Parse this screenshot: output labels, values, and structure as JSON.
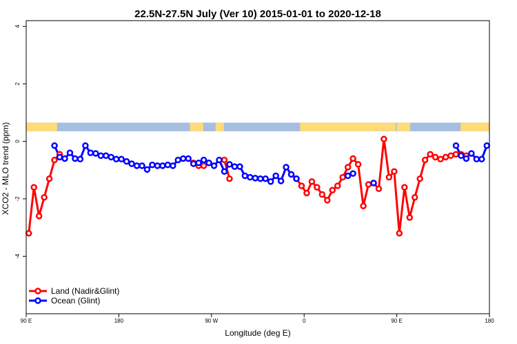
{
  "chart_data": {
    "type": "line",
    "title": "22.5N-27.5N July (Ver 10)   2015-01-01 to 2020-12-18",
    "xlabel": "Longitude (deg E)",
    "ylabel": "XCO2 - MLO trend (ppm)",
    "xlim": [
      90,
      540
    ],
    "ylim": [
      -6,
      4.2
    ],
    "x_ticks": [
      90,
      180,
      270,
      360,
      450,
      540
    ],
    "x_tick_labels": [
      "90 E",
      "180",
      "90 W",
      "0",
      "90 E",
      "180"
    ],
    "y_ticks": [
      -4,
      -2,
      0,
      2,
      4
    ],
    "y_tick_labels": [
      "-4",
      "-2",
      "0",
      "2",
      "4"
    ],
    "grid": false,
    "legend_position": "bottom-left",
    "land_strip": {
      "y_range": [
        0.35,
        0.65
      ],
      "ocean_color": "#a6bedf",
      "land_color": "#ffdb7a",
      "land_intervals": [
        [
          90,
          120
        ],
        [
          249,
          262
        ],
        [
          274,
          278
        ],
        [
          277,
          282
        ],
        [
          356,
          425
        ],
        [
          422,
          442
        ],
        [
          442,
          449
        ],
        [
          450,
          463
        ],
        [
          512,
          540
        ]
      ]
    },
    "series": [
      {
        "name": "Land (Nadir&Glint)",
        "color": "#ff0000",
        "x": [
          92.5,
          97.5,
          102.5,
          107.5,
          112.5,
          117.5,
          122.5,
          252.5,
          257.5,
          262.5,
          267.5,
          282.5,
          287.5,
          347.5,
          352.5,
          357.5,
          362.5,
          367.5,
          372.5,
          377.5,
          382.5,
          387.5,
          392.5,
          397.5,
          402.5,
          407.5,
          412.5,
          417.5,
          422.5,
          427.5,
          432.5,
          437.5,
          442.5,
          447.5,
          452.5,
          457.5,
          462.5,
          467.5,
          472.5,
          477.5,
          482.5,
          487.5,
          492.5,
          497.5,
          502.5,
          507.5,
          512.5,
          517.5
        ],
        "y": [
          -3.2,
          -1.6,
          -2.6,
          -1.95,
          -1.3,
          -0.65,
          -0.45,
          -0.75,
          -0.85,
          -0.85,
          -0.75,
          -0.65,
          -1.3,
          -1.15,
          -1.3,
          -1.55,
          -1.8,
          -1.4,
          -1.6,
          -1.85,
          -2.05,
          -1.7,
          -1.55,
          -1.25,
          -0.9,
          -0.6,
          -0.8,
          -2.25,
          -1.5,
          -1.45,
          -1.65,
          0.08,
          -1.25,
          -1.05,
          -3.2,
          -1.6,
          -2.65,
          -1.95,
          -1.3,
          -0.65,
          -0.45,
          -0.55,
          -0.62,
          -0.55,
          -0.5,
          -0.45,
          -0.45,
          -0.5
        ]
      },
      {
        "name": "Ocean (Glint)",
        "color": "#0000ff",
        "x": [
          117.5,
          122.5,
          127.5,
          132.5,
          137.5,
          142.5,
          147.5,
          152.5,
          157.5,
          162.5,
          167.5,
          172.5,
          177.5,
          182.5,
          187.5,
          192.5,
          197.5,
          202.5,
          207.5,
          212.5,
          217.5,
          222.5,
          227.5,
          232.5,
          237.5,
          242.5,
          247.5,
          252.5,
          257.5,
          262.5,
          267.5,
          272.5,
          277.5,
          282.5,
          287.5,
          292.5,
          297.5,
          302.5,
          307.5,
          312.5,
          317.5,
          322.5,
          327.5,
          332.5,
          337.5,
          342.5,
          347.5,
          352.5,
          402.5,
          407.5,
          427.5,
          507.5,
          512.5,
          517.5,
          522.5,
          527.5,
          532.5,
          537.5
        ],
        "y": [
          -0.15,
          -0.55,
          -0.6,
          -0.4,
          -0.6,
          -0.62,
          -0.15,
          -0.4,
          -0.42,
          -0.5,
          -0.5,
          -0.55,
          -0.62,
          -0.62,
          -0.7,
          -0.78,
          -0.85,
          -0.85,
          -0.98,
          -0.82,
          -0.85,
          -0.85,
          -0.82,
          -0.85,
          -0.65,
          -0.6,
          -0.6,
          -0.78,
          -0.75,
          -0.65,
          -0.75,
          -0.85,
          -0.65,
          -1.05,
          -0.8,
          -0.88,
          -0.88,
          -1.2,
          -1.25,
          -1.28,
          -1.3,
          -1.3,
          -1.4,
          -1.2,
          -1.38,
          -0.9,
          -1.15,
          -1.3,
          -1.2,
          -1.12,
          -1.45,
          -0.15,
          -0.5,
          -0.6,
          -0.42,
          -0.62,
          -0.62,
          -0.15
        ]
      }
    ]
  }
}
